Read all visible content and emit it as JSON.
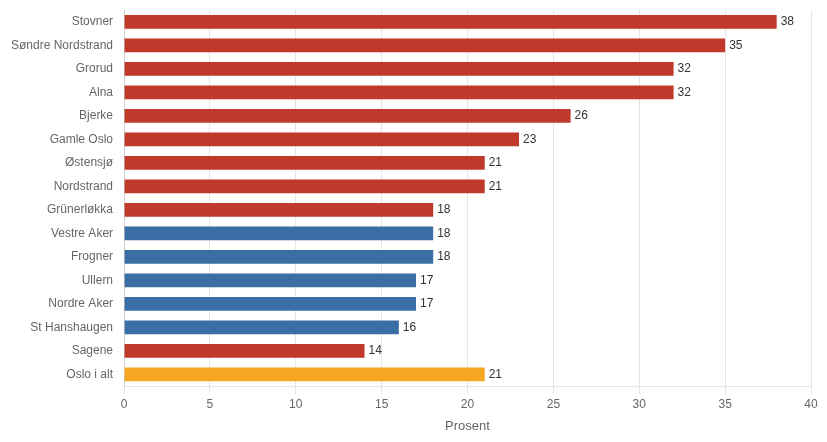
{
  "chart_data": {
    "type": "bar",
    "orientation": "horizontal",
    "categories": [
      "Oslo i alt",
      "Sagene",
      "St Hanshaugen",
      "Nordre Aker",
      "Ullern",
      "Frogner",
      "Vestre Aker",
      "Grünerløkka",
      "Nordstrand",
      "Østensjø",
      "Gamle Oslo",
      "Bjerke",
      "Alna",
      "Grorud",
      "Søndre Nordstrand",
      "Stovner"
    ],
    "values": [
      21,
      14,
      16,
      17,
      17,
      18,
      18,
      18,
      21,
      21,
      23,
      26,
      32,
      32,
      35,
      38
    ],
    "colors": [
      "#F5A623",
      "#C0392B",
      "#3A6EA5",
      "#3A6EA5",
      "#3A6EA5",
      "#3A6EA5",
      "#3A6EA5",
      "#C0392B",
      "#C0392B",
      "#C0392B",
      "#C0392B",
      "#C0392B",
      "#C0392B",
      "#C0392B",
      "#C0392B",
      "#C0392B"
    ],
    "xlabel": "Prosent",
    "xlim": [
      0,
      40
    ],
    "xticks": [
      0,
      5,
      10,
      15,
      20,
      25,
      30,
      35,
      40
    ],
    "grid": true,
    "data_labels": true
  }
}
